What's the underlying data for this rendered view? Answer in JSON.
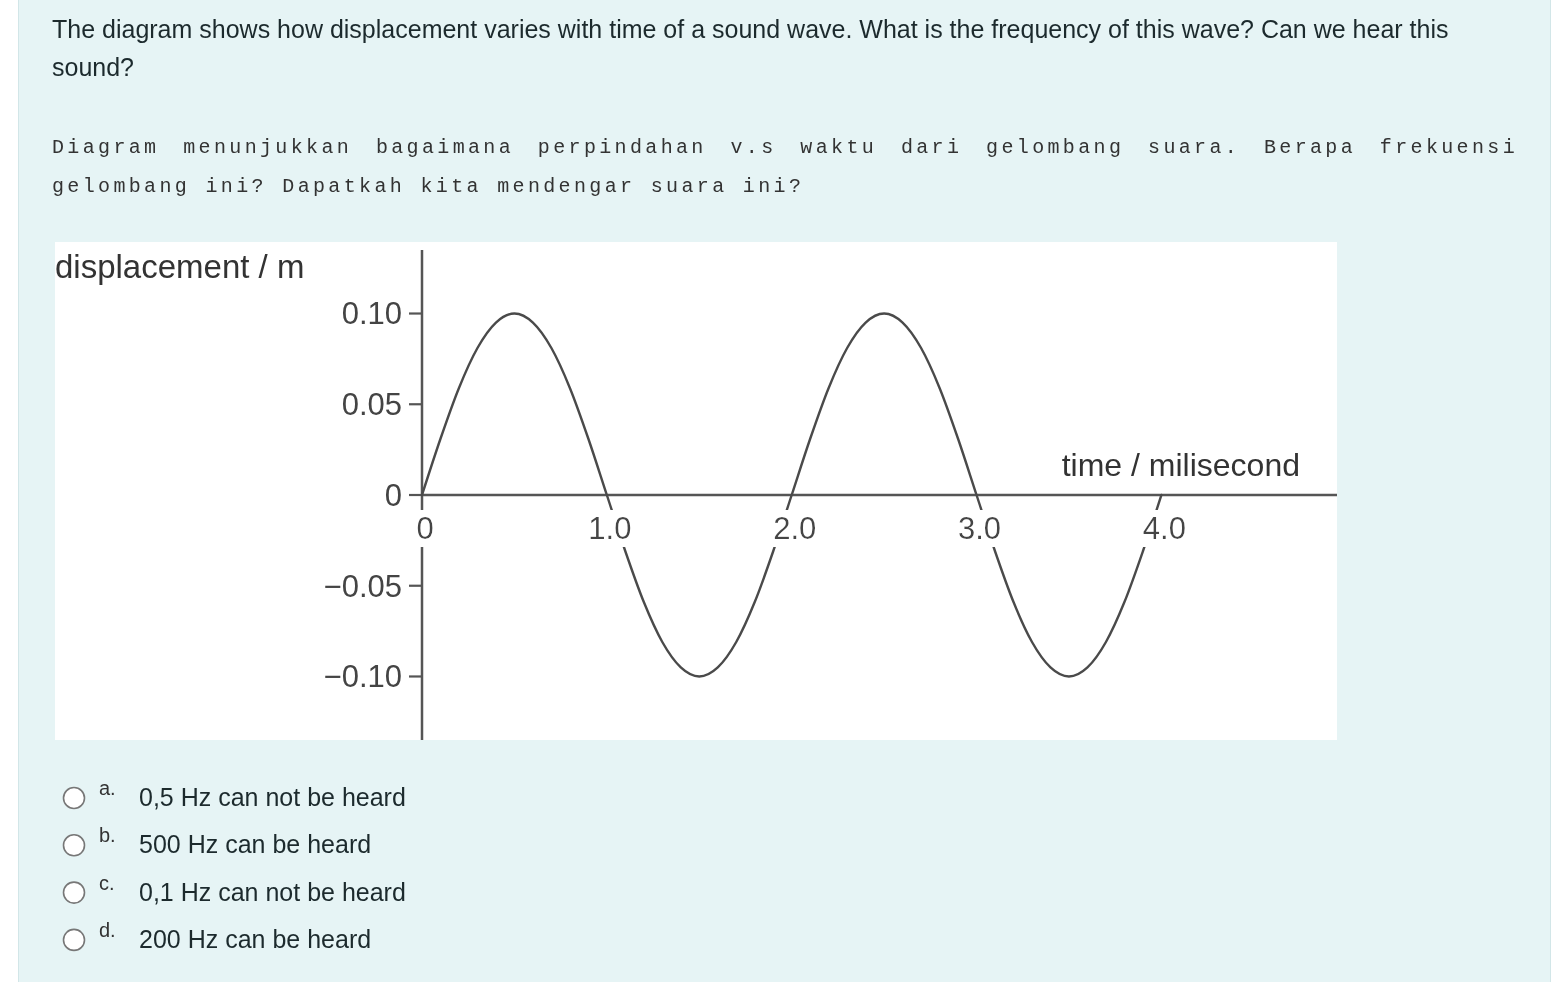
{
  "chart_data": {
    "type": "line",
    "title": "The diagram shows how displacement varies with time of a sound wave. What is the frequency of this wave? Can we hear this sound?",
    "subtitle": "Diagram menunjukkan bagaimana perpindahan v.s waktu dari gelombang suara. Berapa frekuensi gelombang ini? Dapatkah kita mendengar suara ini?",
    "xlabel": "time / milisecond",
    "ylabel": "displacement / m",
    "annotations": [
      "a.",
      "0,5 Hz can not be heard",
      "b.",
      "500 Hz can be heard",
      "c.",
      "0,1 Hz can not be heard",
      "d.",
      "200 Hz can be heard"
    ],
    "x": [
      0,
      0.1,
      0.2,
      0.3,
      0.4,
      0.5,
      0.6,
      0.7,
      0.8,
      0.9,
      1.0,
      1.1,
      1.2,
      1.3,
      1.4,
      1.5,
      1.6,
      1.7,
      1.8,
      1.9,
      2.0,
      2.1,
      2.2,
      2.3,
      2.4,
      2.5,
      2.6,
      2.7,
      2.8,
      2.9,
      3.0,
      3.1,
      3.2,
      3.3,
      3.4,
      3.5,
      3.6,
      3.7,
      3.8,
      3.9,
      4.0
    ],
    "series": [
      {
        "color": "#4a4a4a",
        "values": [
          0,
          0.031,
          0.059,
          0.081,
          0.095,
          0.1,
          0.095,
          0.081,
          0.059,
          0.031,
          0,
          -0.031,
          -0.059,
          -0.081,
          -0.095,
          -0.1,
          -0.095,
          -0.081,
          -0.059,
          -0.031,
          0,
          0.031,
          0.059,
          0.081,
          0.095,
          0.1,
          0.095,
          0.081,
          0.059,
          0.031,
          0,
          -0.031,
          -0.059,
          -0.081,
          -0.095,
          -0.1,
          -0.095,
          -0.081,
          -0.059,
          -0.031,
          0
        ]
      }
    ],
    "xlim": [
      0,
      4.95
    ],
    "ylim": [
      -0.135,
      0.135
    ],
    "xticks": [
      0,
      {
        "value": 1,
        "label": "1.0"
      },
      {
        "value": 2,
        "label": "2.0"
      },
      {
        "value": 3,
        "label": "3.0"
      },
      {
        "value": 4,
        "label": "4.0"
      }
    ],
    "yticks": [
      {
        "value": 0.1,
        "label": "0.10"
      },
      0.05,
      0,
      -0.05,
      {
        "value": -0.1,
        "label": "−0.10"
      }
    ]
  }
}
